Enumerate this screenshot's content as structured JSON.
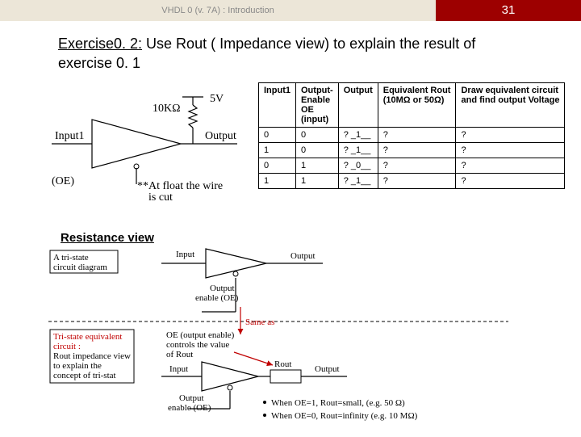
{
  "header": {
    "lecture": "VHDL 0 (v. 7A) : Introduction",
    "page": "31"
  },
  "title": {
    "prefix": "Exercise0. 2:",
    "rest": " Use Rout ( Impedance view) to explain the result of",
    "line2": "exercise 0. 1"
  },
  "section": "Resistance view",
  "circuit1": {
    "input_label": "Input1",
    "oe_label": "(OE)",
    "output_label": "Output",
    "r_label": "10KΩ",
    "v_label": "5V",
    "float_note": "**At float the wire",
    "float_note2": "is cut"
  },
  "table": {
    "headers": [
      "Input1",
      "Output-\nEnable\nOE\n(input)",
      "Output",
      "Equivalent Rout\n(10MΩ or 50Ω)",
      "Draw equivalent circuit\nand find output Voltage"
    ],
    "rows": [
      [
        "0",
        "0",
        "? _1__",
        "?",
        "?"
      ],
      [
        "1",
        "0",
        "? _1__",
        "?",
        "?"
      ],
      [
        "0",
        "1",
        "? _0__",
        "?",
        "?"
      ],
      [
        "1",
        "1",
        "? _1__",
        "?",
        "?"
      ]
    ]
  },
  "diagram": {
    "box1": "A tri-state\ncircuit diagram",
    "box2": "Tri-state equivalent\ncircuit :\nRout impedance view\nto explain the\nconcept of tri-stat",
    "input": "Input",
    "output": "Output",
    "oe_top": "Output",
    "oe_bot": "enable (OE)",
    "same_as": "Same as",
    "mid_label": "OE (output enable)\ncontrols the value\nof Rout",
    "rout": "Rout",
    "bullet1": "When OE=1, Rout=small, (e.g. 50 Ω)",
    "bullet2": "When OE=0, Rout=infinity (e.g. 10 MΩ)"
  },
  "colors": {
    "header_red": "#9d0000",
    "header_pale": "#ece6d8",
    "red": "#c00000"
  }
}
